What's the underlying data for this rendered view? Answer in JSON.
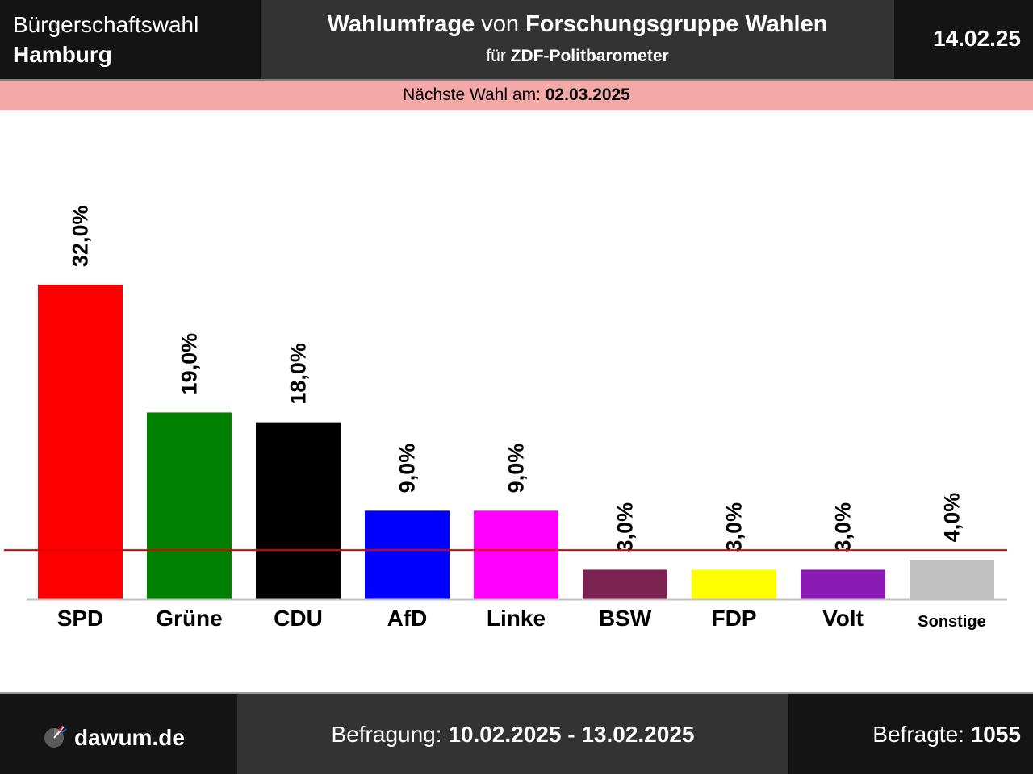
{
  "header": {
    "election_type": "Bürgerschaftswahl",
    "region": "Hamburg",
    "title_bold1": "Wahlumfrage",
    "title_mid": " von ",
    "title_bold2": "Forschungsgruppe Wahlen",
    "subtitle_prefix": "für ",
    "subtitle_bold": "ZDF-Politbarometer",
    "date": "14.02.25"
  },
  "next_election": {
    "label": "Nächste Wahl am: ",
    "date": "02.03.2025"
  },
  "chart_data": {
    "type": "bar",
    "categories": [
      "SPD",
      "Grüne",
      "CDU",
      "AfD",
      "Linke",
      "BSW",
      "FDP",
      "Volt",
      "Sonstige"
    ],
    "values": [
      32.0,
      19.0,
      18.0,
      9.0,
      9.0,
      3.0,
      3.0,
      3.0,
      4.0
    ],
    "value_labels": [
      "32,0%",
      "19,0%",
      "18,0%",
      "9,0%",
      "9,0%",
      "3,0%",
      "3,0%",
      "3,0%",
      "4,0%"
    ],
    "colors": [
      "#ff0000",
      "#008000",
      "#000000",
      "#0000ff",
      "#ff00ff",
      "#7b2250",
      "#ffff00",
      "#8b1ab4",
      "#c0c0c0"
    ],
    "threshold": 5.0,
    "threshold_color": "#e00000",
    "ylim": [
      0,
      32.0
    ],
    "grid": false,
    "legend": "none"
  },
  "footer": {
    "site": "dawum.de",
    "survey_label": "Befragung: ",
    "survey_period": "10.02.2025 - 13.02.2025",
    "respondents_label": "Befragte: ",
    "respondents": "1055"
  }
}
